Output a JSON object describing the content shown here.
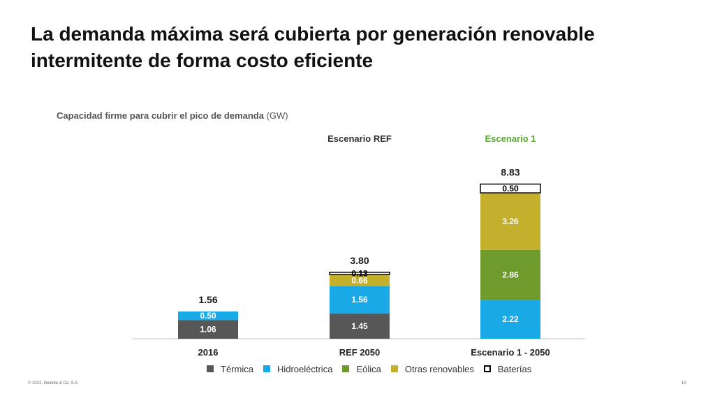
{
  "slide": {
    "title": "La demanda máxima será cubierta por generación renovable intermitente de forma costo eficiente",
    "footer_left": "© 2022. Deloitte & Co. S.A.",
    "page_number": "10"
  },
  "chart_data": {
    "type": "bar",
    "stacked": true,
    "title": "Capacidad firme para cubrir el pico de demanda",
    "title_unit": "(GW)",
    "categories": [
      "2016",
      "REF 2050",
      "Escenario 1 - 2050"
    ],
    "group_headers": [
      {
        "label": "",
        "color": "#333333"
      },
      {
        "label": "Escenario REF",
        "color": "#333333"
      },
      {
        "label": "Escenario 1",
        "color": "#5aa832"
      }
    ],
    "series": [
      {
        "name": "Térmica",
        "color": "#575757",
        "values": [
          1.06,
          1.45,
          0
        ]
      },
      {
        "name": "Hidroeléctrica",
        "color": "#19a9e6",
        "values": [
          0.5,
          1.56,
          2.22
        ]
      },
      {
        "name": "Eólica",
        "color": "#6e9b2c",
        "values": [
          0,
          0,
          2.86
        ]
      },
      {
        "name": "Otras renovables",
        "color": "#c4b02c",
        "values": [
          0,
          0.66,
          3.26
        ]
      },
      {
        "name": "Baterías",
        "color": "#ffffff",
        "values": [
          0,
          0.13,
          0.5
        ]
      }
    ],
    "totals": [
      "1.56",
      "3.80",
      "8.83"
    ],
    "data_labels": [
      [
        "1.06",
        "1.45",
        ""
      ],
      [
        "0.50",
        "1.56",
        "2.22"
      ],
      [
        "",
        "",
        "2.86"
      ],
      [
        "",
        "0.66",
        "3.26"
      ],
      [
        "",
        "0.13",
        "0.50"
      ]
    ],
    "legend_position": "bottom",
    "grid": false
  }
}
